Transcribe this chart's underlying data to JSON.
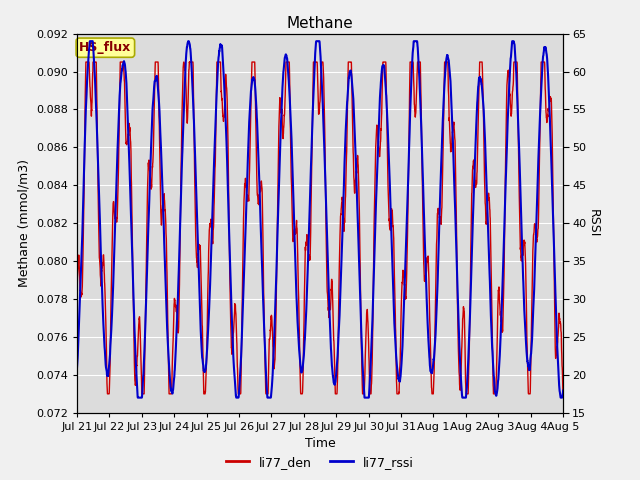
{
  "title": "Methane",
  "xlabel": "Time",
  "ylabel_left": "Methane (mmol/m3)",
  "ylabel_right": "RSSI",
  "ylim_left": [
    0.072,
    0.092
  ],
  "ylim_right": [
    15,
    65
  ],
  "yticks_left": [
    0.072,
    0.074,
    0.076,
    0.078,
    0.08,
    0.082,
    0.084,
    0.086,
    0.088,
    0.09,
    0.092
  ],
  "yticks_right": [
    15,
    20,
    25,
    30,
    35,
    40,
    45,
    50,
    55,
    60,
    65
  ],
  "x_tick_labels": [
    "Jul 21",
    "Jul 22",
    "Jul 23",
    "Jul 24",
    "Jul 25",
    "Jul 26",
    "Jul 27",
    "Jul 28",
    "Jul 29",
    "Jul 30",
    "Jul 31",
    "Aug 1",
    "Aug 2",
    "Aug 3",
    "Aug 4",
    "Aug 5"
  ],
  "legend_labels": [
    "li77_den",
    "li77_rssi"
  ],
  "line_color_red": "#cc0000",
  "line_color_blue": "#0000cc",
  "annotation_text": "HS_flux",
  "annotation_bg": "#ffff99",
  "annotation_border": "#aaaa00",
  "fig_bg": "#f0f0f0",
  "plot_bg": "#dcdcdc",
  "grid_color": "#ffffff",
  "title_fontsize": 11,
  "axis_fontsize": 9,
  "tick_fontsize": 8,
  "legend_fontsize": 9,
  "linewidth_red": 1.0,
  "linewidth_blue": 1.5
}
